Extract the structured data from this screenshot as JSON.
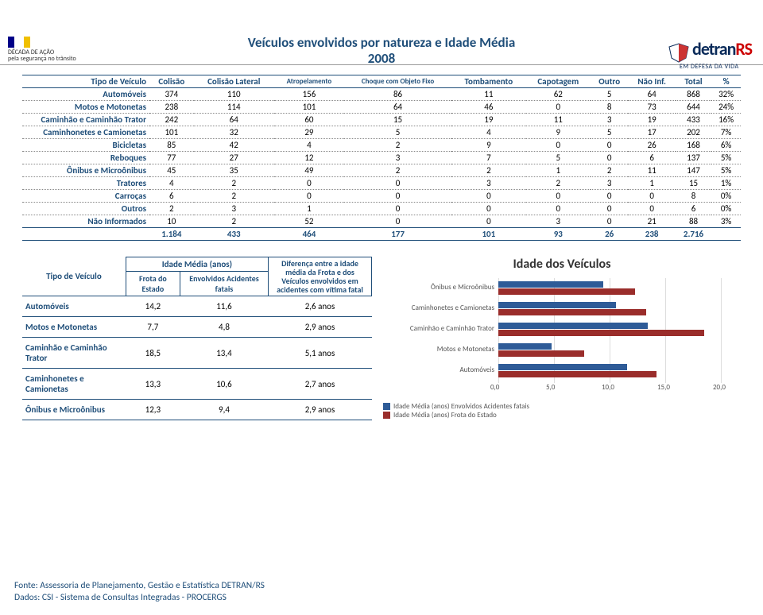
{
  "colors": {
    "primary": "#1f4e79",
    "series_blue": "#2e5b97",
    "series_red": "#9a2d2b",
    "grid": "#dddddd"
  },
  "header": {
    "left_logo_line1": "DÉCADA DE AÇÃO",
    "left_logo_line2": "pela segurança no trânsito",
    "brand_main": "detran",
    "brand_suffix": "RS",
    "brand_slogan": "EM DEFESA DA VIDA"
  },
  "title_line1": "Veículos envolvidos por natureza e Idade Média",
  "title_line2": "2008",
  "table1": {
    "headers": [
      "Tipo de Veículo",
      "Colisão",
      "Colisão Lateral",
      "Atropelamento",
      "Choque com Objeto Fixo",
      "Tombamento",
      "Capotagem",
      "Outro",
      "Não Inf.",
      "Total",
      "%"
    ],
    "rows": [
      {
        "label": "Automóveis",
        "cells": [
          "374",
          "110",
          "156",
          "86",
          "11",
          "62",
          "5",
          "64",
          "868",
          "32%"
        ]
      },
      {
        "label": "Motos e Motonetas",
        "cells": [
          "238",
          "114",
          "101",
          "64",
          "46",
          "0",
          "8",
          "73",
          "644",
          "24%"
        ]
      },
      {
        "label": "Caminhão e Caminhão Trator",
        "cells": [
          "242",
          "64",
          "60",
          "15",
          "19",
          "11",
          "3",
          "19",
          "433",
          "16%"
        ]
      },
      {
        "label": "Caminhonetes e Camionetas",
        "cells": [
          "101",
          "32",
          "29",
          "5",
          "4",
          "9",
          "5",
          "17",
          "202",
          "7%"
        ]
      },
      {
        "label": "Bicicletas",
        "cells": [
          "85",
          "42",
          "4",
          "2",
          "9",
          "0",
          "0",
          "26",
          "168",
          "6%"
        ]
      },
      {
        "label": "Reboques",
        "cells": [
          "77",
          "27",
          "12",
          "3",
          "7",
          "5",
          "0",
          "6",
          "137",
          "5%"
        ]
      },
      {
        "label": "Ônibus e Microônibus",
        "cells": [
          "45",
          "35",
          "49",
          "2",
          "2",
          "1",
          "2",
          "11",
          "147",
          "5%"
        ]
      },
      {
        "label": "Tratores",
        "cells": [
          "4",
          "2",
          "0",
          "0",
          "3",
          "2",
          "3",
          "1",
          "15",
          "1%"
        ]
      },
      {
        "label": "Carroças",
        "cells": [
          "6",
          "2",
          "0",
          "0",
          "0",
          "0",
          "0",
          "0",
          "8",
          "0%"
        ]
      },
      {
        "label": "Outros",
        "cells": [
          "2",
          "3",
          "1",
          "0",
          "0",
          "0",
          "0",
          "0",
          "6",
          "0%"
        ]
      },
      {
        "label": "Não Informados",
        "cells": [
          "10",
          "2",
          "52",
          "0",
          "0",
          "3",
          "0",
          "21",
          "88",
          "3%"
        ]
      }
    ],
    "totals": [
      "",
      "1.184",
      "433",
      "464",
      "177",
      "101",
      "93",
      "26",
      "238",
      "2.716",
      ""
    ]
  },
  "table2": {
    "head_type": "Tipo de Veículo",
    "head_group": "Idade Média (anos)",
    "head_sub1": "Frota do Estado",
    "head_sub2": "Envolvidos Acidentes fatais",
    "head_diff": "Diferença entre a idade média da Frota e dos Veículos envolvidos em acidentes com vítima fatal",
    "rows": [
      {
        "label": "Automóveis",
        "v1": "14,2",
        "v2": "11,6",
        "d": "2,6 anos"
      },
      {
        "label": "Motos e Motonetas",
        "v1": "7,7",
        "v2": "4,8",
        "d": "2,9 anos"
      },
      {
        "label": "Caminhão e Caminhão Trator",
        "v1": "18,5",
        "v2": "13,4",
        "d": "5,1 anos"
      },
      {
        "label": "Caminhonetes e Camionetas",
        "v1": "13,3",
        "v2": "10,6",
        "d": "2,7 anos"
      },
      {
        "label": "Ônibus e Microônibus",
        "v1": "12,3",
        "v2": "9,4",
        "d": "2,9 anos"
      }
    ]
  },
  "chart": {
    "title": "Idade dos Veículos",
    "xmax": 20,
    "xticks": [
      "0,0",
      "5,0",
      "10,0",
      "15,0",
      "20,0"
    ],
    "categories": [
      {
        "label": "Ônibus e Microônibus",
        "blue": 9.4,
        "red": 12.3
      },
      {
        "label": "Caminhonetes e Camionetas",
        "blue": 10.6,
        "red": 13.3
      },
      {
        "label": "Caminhão e Caminhão Trator",
        "blue": 13.4,
        "red": 18.5
      },
      {
        "label": "Motos e Motonetas",
        "blue": 4.8,
        "red": 7.7
      },
      {
        "label": "Automóveis",
        "blue": 11.6,
        "red": 14.2
      }
    ],
    "legend_blue": "Idade Média (anos) Envolvidos Acidentes fatais",
    "legend_red": "Idade Média (anos) Frota do Estado"
  },
  "footer": {
    "line1": "Fonte: Assessoria de Planejamento, Gestão e Estatística DETRAN/RS",
    "line2": "Dados: CSI - Sistema de Consultas Integradas - PROCERGS"
  }
}
